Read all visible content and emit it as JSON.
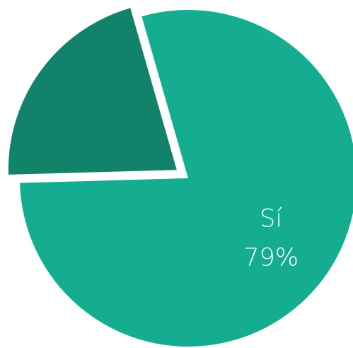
{
  "chart_data": {
    "type": "pie",
    "categories": [
      "Sí",
      null
    ],
    "values": [
      79,
      21
    ],
    "value_labels": [
      "79%",
      null
    ],
    "colors": [
      "#14ad8f",
      "#12836a"
    ],
    "explode": [
      false,
      true
    ]
  }
}
